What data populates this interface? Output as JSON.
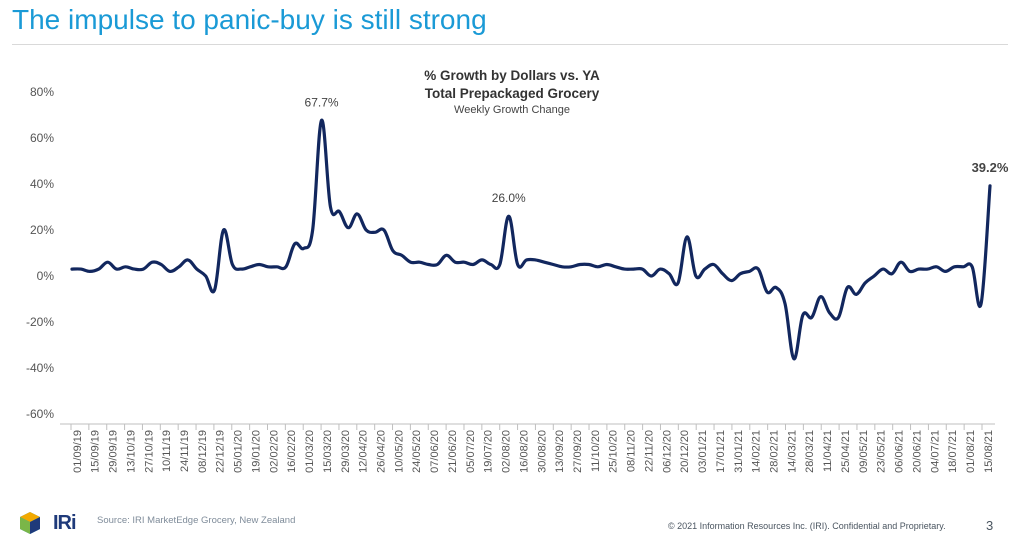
{
  "page": {
    "title": "The impulse to panic-buy is still strong",
    "footer_source": "Source: IRI MarketEdge Grocery, New Zealand",
    "footer_copyright": "© 2021 Information Resources Inc. (IRI). Confidential and Proprietary.",
    "page_number": "3",
    "logo_text": "IRi",
    "accent_color": "#1a9ad6",
    "line_color": "#12275e"
  },
  "chart_data": {
    "type": "line",
    "title": "% Growth by Dollars vs. YA",
    "subtitle": "Total Prepackaged Grocery",
    "subtitle2": "Weekly Growth Change",
    "xlabel": "",
    "ylabel": "",
    "ylim": [
      -60,
      80
    ],
    "yticks": [
      80,
      60,
      40,
      20,
      0,
      -20,
      -40,
      -60
    ],
    "ytick_labels": [
      "80%",
      "60%",
      "40%",
      "20%",
      "0%",
      "-20%",
      "-40%",
      "-60%"
    ],
    "grid": false,
    "legend": "none",
    "x_tick_labels": [
      "01/09/19",
      "15/09/19",
      "29/09/19",
      "13/10/19",
      "27/10/19",
      "10/11/19",
      "24/11/19",
      "08/12/19",
      "22/12/19",
      "05/01/20",
      "19/01/20",
      "02/02/20",
      "16/02/20",
      "01/03/20",
      "15/03/20",
      "29/03/20",
      "12/04/20",
      "26/04/20",
      "10/05/20",
      "24/05/20",
      "07/06/20",
      "21/06/20",
      "05/07/20",
      "19/07/20",
      "02/08/20",
      "16/08/20",
      "30/08/20",
      "13/09/20",
      "27/09/20",
      "11/10/20",
      "25/10/20",
      "08/11/20",
      "22/11/20",
      "06/12/20",
      "20/12/20",
      "03/01/21",
      "17/01/21",
      "31/01/21",
      "14/02/21",
      "28/02/21",
      "14/03/21",
      "28/03/21",
      "11/04/21",
      "25/04/21",
      "09/05/21",
      "23/05/21",
      "06/06/21",
      "20/06/21",
      "04/07/21",
      "18/07/21",
      "01/08/21",
      "15/08/21"
    ],
    "series": [
      {
        "values": [
          3,
          3,
          2,
          3,
          6,
          3,
          4,
          3,
          3,
          6,
          5,
          2,
          4,
          7,
          3,
          0,
          -6,
          20,
          5,
          3,
          4,
          5,
          4,
          4,
          4,
          14,
          12,
          20,
          67.7,
          30,
          28,
          21,
          27,
          20,
          19,
          20,
          11,
          9,
          6,
          6,
          5,
          5,
          9,
          6,
          6,
          5,
          7,
          5,
          5,
          26,
          5,
          7,
          7,
          6,
          5,
          4,
          4,
          5,
          5,
          4,
          5,
          4,
          3,
          3,
          3,
          0,
          3,
          1,
          -3,
          17,
          0,
          3,
          5,
          1,
          -2,
          1,
          2,
          3,
          -7,
          -5,
          -12,
          -36,
          -17,
          -18,
          -9,
          -16,
          -18,
          -5,
          -8,
          -3,
          0,
          3,
          1,
          6,
          2,
          3,
          3,
          4,
          2,
          4,
          4,
          4,
          -12,
          39.2
        ]
      }
    ],
    "annotations": [
      {
        "text": "67.7%",
        "index": 28,
        "value": 67.7,
        "bold": false
      },
      {
        "text": "26.0%",
        "index": 49,
        "value": 26.0,
        "bold": false
      },
      {
        "text": "39.2%",
        "index": 103,
        "value": 39.2,
        "bold": true
      }
    ]
  }
}
